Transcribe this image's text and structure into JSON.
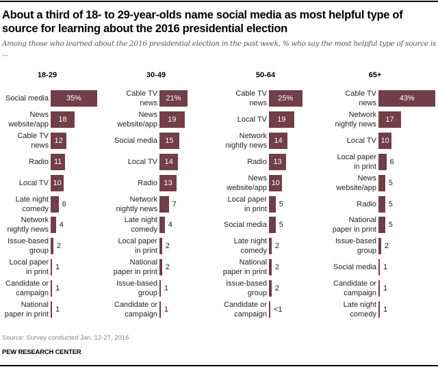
{
  "title": "About a third of 18- to 29-year-olds name social media as most helpful type of source for learning about the 2016 presidential election",
  "subtitle": "Among those who learned about the 2016 presidential election in the past week, % who say the most helpful type of source is ...",
  "source": "Source: Survey conducted Jan. 12-27, 2016",
  "brand": "PEW RESEARCH CENTER",
  "bar_color": "#713e4a",
  "chart_data": [
    {
      "type": "bar",
      "orientation": "horizontal",
      "title": "18-29",
      "unit": "%",
      "categories": [
        "Social media",
        "News website/app",
        "Cable TV news",
        "Radio",
        "Local TV",
        "Late night comedy",
        "Network nightly news",
        "Issue-based group",
        "Local paper in print",
        "Candidate or campaign",
        "National paper in print"
      ],
      "labels": [
        [
          "Social media"
        ],
        [
          "News",
          "website/app"
        ],
        [
          "Cable TV",
          "news"
        ],
        [
          "Radio"
        ],
        [
          "Local TV"
        ],
        [
          "Late night",
          "comedy"
        ],
        [
          "Network",
          "nightly news"
        ],
        [
          "Issue-based",
          "group"
        ],
        [
          "Local paper",
          "in print"
        ],
        [
          "Candidate or",
          "campaign"
        ],
        [
          "National",
          "paper in print"
        ]
      ],
      "values": [
        35,
        18,
        12,
        11,
        10,
        6,
        4,
        2,
        1,
        1,
        1
      ],
      "value_labels": [
        "35%",
        "18",
        "12",
        "11",
        "10",
        "6",
        "4",
        "2",
        "1",
        "1",
        "1"
      ],
      "xlim": [
        0,
        45
      ]
    },
    {
      "type": "bar",
      "orientation": "horizontal",
      "title": "30-49",
      "unit": "%",
      "categories": [
        "Cable TV news",
        "News website/app",
        "Social media",
        "Local TV",
        "Radio",
        "Network nightly news",
        "Late night comedy",
        "Local paper in print",
        "National paper in print",
        "Issue-based group",
        "Candidate or campaign"
      ],
      "labels": [
        [
          "Cable TV",
          "news"
        ],
        [
          "News",
          "website/app"
        ],
        [
          "Social media"
        ],
        [
          "Local TV"
        ],
        [
          "Radio"
        ],
        [
          "Network",
          "nightly news"
        ],
        [
          "Late night",
          "comedy"
        ],
        [
          "Local paper",
          "in print"
        ],
        [
          "National",
          "paper in print"
        ],
        [
          "Issue-based",
          "group"
        ],
        [
          "Candidate or",
          "campaign"
        ]
      ],
      "values": [
        21,
        19,
        15,
        14,
        13,
        7,
        4,
        2,
        2,
        1,
        1
      ],
      "value_labels": [
        "21%",
        "19",
        "15",
        "14",
        "13",
        "7",
        "4",
        "2",
        "2",
        "1",
        "1"
      ],
      "xlim": [
        0,
        45
      ]
    },
    {
      "type": "bar",
      "orientation": "horizontal",
      "title": "50-64",
      "unit": "%",
      "categories": [
        "Cable TV news",
        "Local TV",
        "Network nightly news",
        "Radio",
        "News website/app",
        "Local paper in print",
        "Social media",
        "Late night comedy",
        "National paper in print",
        "Issue-based group",
        "Candidate or campaign"
      ],
      "labels": [
        [
          "Cable TV",
          "news"
        ],
        [
          "Local TV"
        ],
        [
          "Network",
          "nightly news"
        ],
        [
          "Radio"
        ],
        [
          "News",
          "website/app"
        ],
        [
          "Local paper",
          "in print"
        ],
        [
          "Social media"
        ],
        [
          "Late night",
          "comedy"
        ],
        [
          "National",
          "paper in print"
        ],
        [
          "Issue-based",
          "group"
        ],
        [
          "Candidate or",
          "campaign"
        ]
      ],
      "values": [
        25,
        19,
        14,
        13,
        10,
        5,
        5,
        2,
        2,
        2,
        0.4
      ],
      "value_labels": [
        "25%",
        "19",
        "14",
        "13",
        "10",
        "5",
        "5",
        "2",
        "2",
        "2",
        "<1"
      ],
      "xlim": [
        0,
        45
      ]
    },
    {
      "type": "bar",
      "orientation": "horizontal",
      "title": "65+",
      "unit": "%",
      "categories": [
        "Cable TV news",
        "Network nightly news",
        "Local TV",
        "Local paper in print",
        "News website/app",
        "Radio",
        "National paper in print",
        "Issue-based group",
        "Social media",
        "Candidate or campaign",
        "Late night comedy"
      ],
      "labels": [
        [
          "Cable TV",
          "news"
        ],
        [
          "Network",
          "nightly news"
        ],
        [
          "Local TV"
        ],
        [
          "Local paper",
          "in print"
        ],
        [
          "News",
          "website/app"
        ],
        [
          "Radio"
        ],
        [
          "National",
          "paper in print"
        ],
        [
          "Issue-based",
          "group"
        ],
        [
          "Social media"
        ],
        [
          "Candidate or",
          "campaign"
        ],
        [
          "Late night",
          "comedy"
        ]
      ],
      "values": [
        43,
        17,
        10,
        6,
        5,
        5,
        5,
        2,
        1,
        1,
        1
      ],
      "value_labels": [
        "43%",
        "17",
        "10",
        "6",
        "5",
        "5",
        "5",
        "2",
        "1",
        "1",
        "1"
      ],
      "xlim": [
        0,
        45
      ]
    }
  ]
}
